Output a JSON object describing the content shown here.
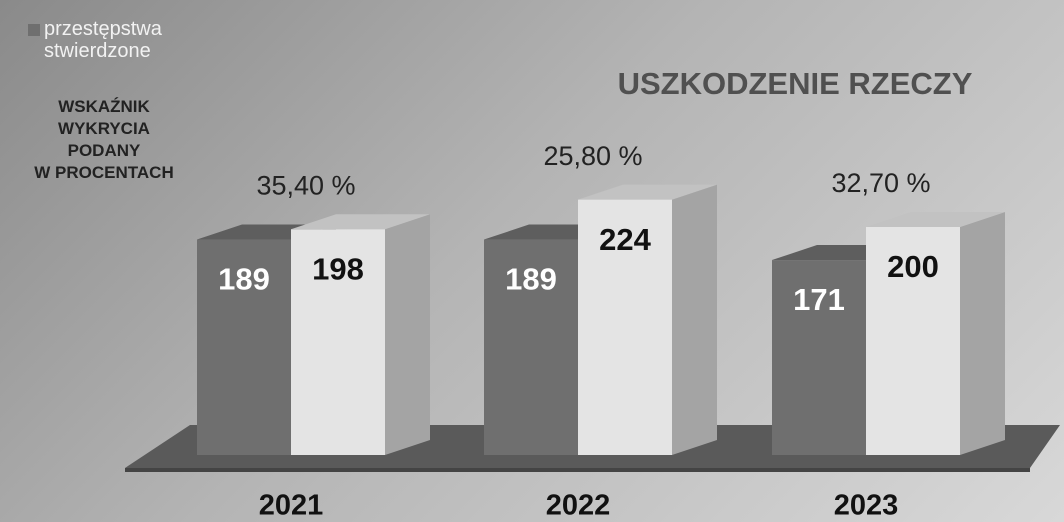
{
  "chart_data": {
    "type": "bar3d",
    "title": "USZKODZENIE RZECZY",
    "annotation": [
      "WSKAŹNIK",
      "WYKRYCIA",
      "PODANY",
      "W PROCENTACH"
    ],
    "categories": [
      "2021",
      "2022",
      "2023"
    ],
    "series": [
      {
        "name": "przestępstwa stwierdzone",
        "color": "#6f6f6f",
        "values": [
          189,
          189,
          171
        ]
      },
      {
        "color": "#e4e4e4",
        "values": [
          198,
          224,
          200
        ]
      }
    ],
    "detection_rate": {
      "values": [
        35.4,
        25.8,
        32.7
      ],
      "value_labels": [
        "35,40 %",
        "25,80 %",
        "32,70 %"
      ]
    }
  }
}
